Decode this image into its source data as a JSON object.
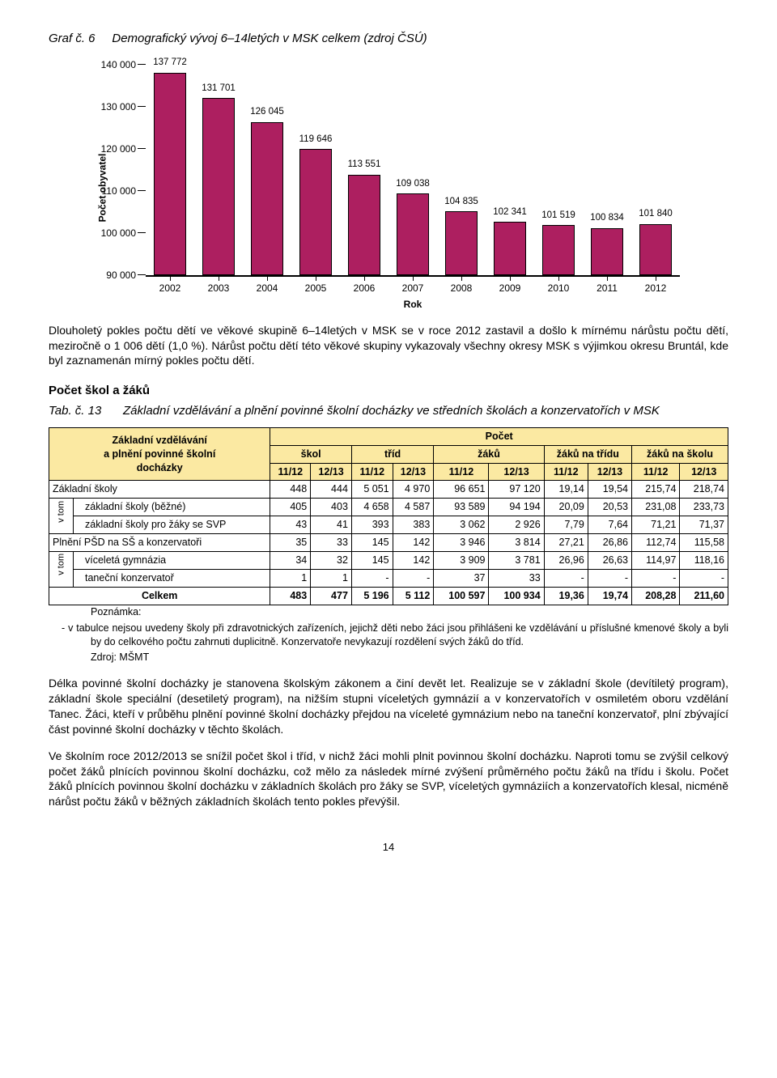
{
  "heading": {
    "graf_no": "Graf č. 6",
    "title": "Demografický vývoj 6–14letých v MSK celkem (zdroj ČSÚ)"
  },
  "chart": {
    "type": "bar",
    "ylabel": "Počet obyvatel",
    "xlabel": "Rok",
    "ylim": [
      90000,
      140000
    ],
    "ytick_step": 10000,
    "yticks": [
      "90 000",
      "100 000",
      "110 000",
      "120 000",
      "130 000",
      "140 000"
    ],
    "categories": [
      "2002",
      "2003",
      "2004",
      "2005",
      "2006",
      "2007",
      "2008",
      "2009",
      "2010",
      "2011",
      "2012"
    ],
    "values": [
      137772,
      131701,
      126045,
      119646,
      113551,
      109038,
      104835,
      102341,
      101519,
      100834,
      101840
    ],
    "value_labels": [
      "137 772",
      "131 701",
      "126 045",
      "119 646",
      "113 551",
      "109 038",
      "104 835",
      "102 341",
      "101 519",
      "100 834",
      "101 840"
    ],
    "bar_color": "#ad1f60",
    "bar_border": "#000000",
    "background_color": "#ffffff",
    "label_fontsize": 12,
    "axis_color": "#000000",
    "bar_width": 0.62
  },
  "para1": "Dlouholetý pokles počtu dětí ve věkové skupině 6–14letých v MSK se v roce 2012 zastavil a došlo k mírnému nárůstu počtu dětí, meziročně o 1 006 dětí (1,0 %). Nárůst počtu dětí této věkové skupiny vykazovaly všechny okresy MSK s výjimkou okresu Bruntál, kde byl zaznamenán mírný pokles počtu dětí.",
  "section_head": "Počet škol a žáků",
  "tab": {
    "tab_no": "Tab. č. 13",
    "title": "Základní vzdělávání a plnění povinné školní docházky ve středních školách a konzervatořích v MSK"
  },
  "table": {
    "corner": "Základní vzdělávání a plnění povinné školní docházky",
    "head_pocet": "Počet",
    "sub_cols": [
      "škol",
      "tříd",
      "žáků",
      "žáků na třídu",
      "žáků na školu"
    ],
    "year_cols": [
      "11/12",
      "12/13"
    ],
    "v_tom": "v tom",
    "header_bg": "#fbe9a2",
    "rows": [
      {
        "label": "Základní školy",
        "indent": false,
        "cells": [
          "448",
          "444",
          "5 051",
          "4 970",
          "96 651",
          "97 120",
          "19,14",
          "19,54",
          "215,74",
          "218,74"
        ]
      },
      {
        "label": "základní školy (běžné)",
        "indent": true,
        "group": 1,
        "cells": [
          "405",
          "403",
          "4 658",
          "4 587",
          "93 589",
          "94 194",
          "20,09",
          "20,53",
          "231,08",
          "233,73"
        ]
      },
      {
        "label": "základní školy pro žáky se SVP",
        "indent": true,
        "group": 1,
        "cells": [
          "43",
          "41",
          "393",
          "383",
          "3 062",
          "2 926",
          "7,79",
          "7,64",
          "71,21",
          "71,37"
        ]
      },
      {
        "label": "Plnění PŠD na SŠ a konzervatoři",
        "indent": false,
        "cells": [
          "35",
          "33",
          "145",
          "142",
          "3 946",
          "3 814",
          "27,21",
          "26,86",
          "112,74",
          "115,58"
        ]
      },
      {
        "label": "víceletá gymnázia",
        "indent": true,
        "group": 2,
        "cells": [
          "34",
          "32",
          "145",
          "142",
          "3 909",
          "3 781",
          "26,96",
          "26,63",
          "114,97",
          "118,16"
        ]
      },
      {
        "label": "taneční konzervatoř",
        "indent": true,
        "group": 2,
        "cells": [
          "1",
          "1",
          "-",
          "-",
          "37",
          "33",
          "-",
          "-",
          "-",
          "-"
        ]
      },
      {
        "label": "Celkem",
        "bold": true,
        "cells": [
          "483",
          "477",
          "5 196",
          "5 112",
          "100 597",
          "100 934",
          "19,36",
          "19,74",
          "208,28",
          "211,60"
        ]
      }
    ]
  },
  "note_head": "Poznámka:",
  "note_body": "-    v tabulce nejsou uvedeny školy při zdravotnických zařízeních, jejichž děti nebo žáci jsou přihlášeni ke vzdělávání u příslušné kmenové školy a byli by do celkového počtu zahrnuti duplicitně. Konzervatoře nevykazují rozdělení svých žáků do tříd.",
  "source": "Zdroj: MŠMT",
  "para2": "Délka povinné školní docházky je stanovena školským zákonem a činí devět let. Realizuje se v základní škole (devítiletý program), základní škole speciální (desetiletý program), na nižším stupni víceletých gymnázií a v konzervatořích v osmiletém oboru vzdělání Tanec. Žáci, kteří v průběhu plnění povinné školní docházky přejdou na víceleté gymnázium nebo na taneční konzervatoř, plní zbývající část povinné školní docházky v těchto školách.",
  "para3": "Ve školním roce 2012/2013 se snížil počet škol i tříd, v nichž žáci mohli plnit povinnou školní docházku. Naproti tomu se zvýšil celkový počet žáků plnících povinnou školní docházku, což mělo za následek mírné zvýšení průměrného počtu žáků na třídu i školu. Počet žáků plnících povinnou školní docházku v základních školách pro žáky se SVP, víceletých gymnáziích a konzervatořích klesal, nicméně nárůst počtu žáků v běžných základních školách tento pokles převýšil.",
  "page_number": "14"
}
